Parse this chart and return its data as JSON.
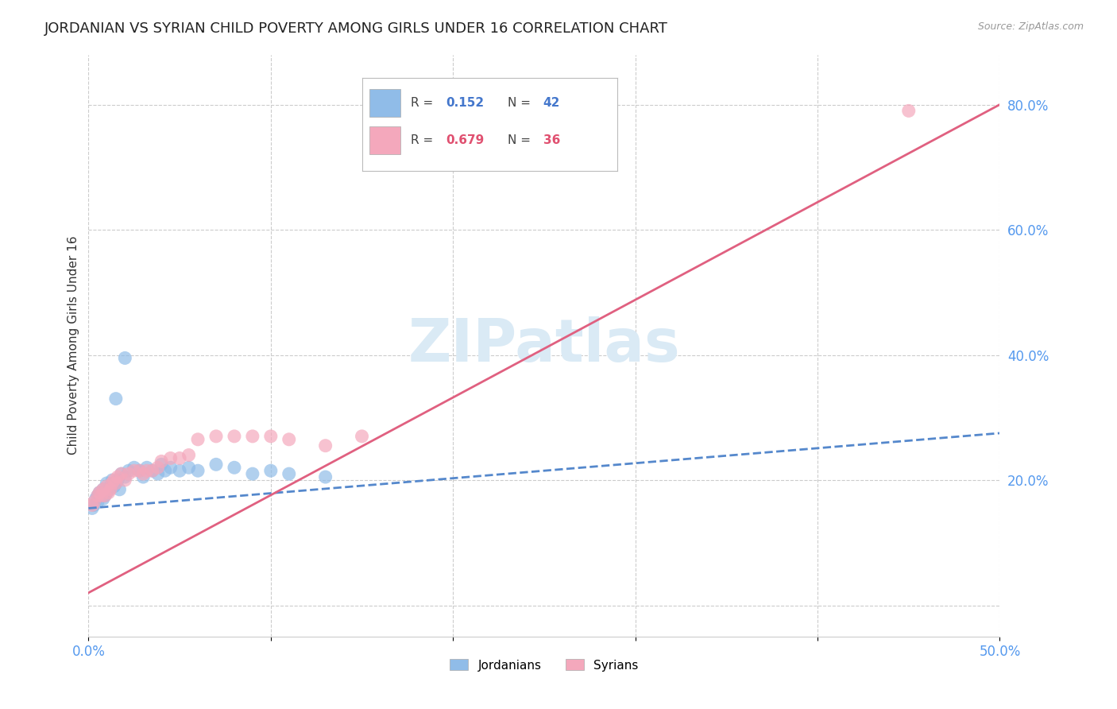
{
  "title": "JORDANIAN VS SYRIAN CHILD POVERTY AMONG GIRLS UNDER 16 CORRELATION CHART",
  "source": "Source: ZipAtlas.com",
  "ylabel": "Child Poverty Among Girls Under 16",
  "xlim": [
    0.0,
    0.5
  ],
  "ylim": [
    -0.05,
    0.88
  ],
  "yticks": [
    0.0,
    0.2,
    0.4,
    0.6,
    0.8
  ],
  "ytick_labels": [
    "",
    "20.0%",
    "40.0%",
    "60.0%",
    "80.0%"
  ],
  "xtick_positions": [
    0.0,
    0.1,
    0.2,
    0.3,
    0.4,
    0.5
  ],
  "xtick_labels": [
    "0.0%",
    "",
    "",
    "",
    "",
    "50.0%"
  ],
  "legend_r1": "0.152",
  "legend_n1": "42",
  "legend_r2": "0.679",
  "legend_n2": "36",
  "jordanian_color": "#90bce8",
  "syrian_color": "#f4a8bc",
  "jordanian_line_color": "#5588cc",
  "syrian_line_color": "#e06080",
  "background_color": "#ffffff",
  "watermark": "ZIPatlas",
  "watermark_color": "#daeaf5",
  "grid_color": "#cccccc",
  "title_fontsize": 13,
  "axis_label_fontsize": 11,
  "tick_fontsize": 12,
  "legend_fontsize": 12,
  "jordanians_x": [
    0.002,
    0.003,
    0.004,
    0.005,
    0.005,
    0.006,
    0.007,
    0.008,
    0.008,
    0.009,
    0.01,
    0.01,
    0.011,
    0.012,
    0.013,
    0.014,
    0.015,
    0.016,
    0.017,
    0.018,
    0.02,
    0.022,
    0.025,
    0.028,
    0.03,
    0.032,
    0.035,
    0.038,
    0.04,
    0.042,
    0.045,
    0.05,
    0.055,
    0.06,
    0.07,
    0.08,
    0.09,
    0.1,
    0.11,
    0.13,
    0.015,
    0.02
  ],
  "jordanians_y": [
    0.155,
    0.16,
    0.17,
    0.165,
    0.175,
    0.18,
    0.175,
    0.17,
    0.185,
    0.175,
    0.18,
    0.195,
    0.185,
    0.19,
    0.2,
    0.19,
    0.195,
    0.2,
    0.185,
    0.21,
    0.205,
    0.215,
    0.22,
    0.215,
    0.205,
    0.22,
    0.215,
    0.21,
    0.225,
    0.215,
    0.22,
    0.215,
    0.22,
    0.215,
    0.225,
    0.22,
    0.21,
    0.215,
    0.21,
    0.205,
    0.33,
    0.395
  ],
  "syrians_x": [
    0.002,
    0.003,
    0.005,
    0.006,
    0.007,
    0.008,
    0.009,
    0.01,
    0.011,
    0.012,
    0.013,
    0.014,
    0.015,
    0.016,
    0.018,
    0.02,
    0.022,
    0.025,
    0.028,
    0.03,
    0.032,
    0.035,
    0.038,
    0.04,
    0.045,
    0.05,
    0.055,
    0.06,
    0.07,
    0.08,
    0.09,
    0.1,
    0.11,
    0.13,
    0.15,
    0.45
  ],
  "syrians_y": [
    0.16,
    0.165,
    0.175,
    0.18,
    0.175,
    0.185,
    0.175,
    0.19,
    0.18,
    0.185,
    0.195,
    0.2,
    0.195,
    0.205,
    0.21,
    0.2,
    0.21,
    0.215,
    0.215,
    0.21,
    0.215,
    0.215,
    0.22,
    0.23,
    0.235,
    0.235,
    0.24,
    0.265,
    0.27,
    0.27,
    0.27,
    0.27,
    0.265,
    0.255,
    0.27,
    0.79
  ],
  "jordan_line_x0": 0.0,
  "jordan_line_y0": 0.155,
  "jordan_line_x1": 0.5,
  "jordan_line_y1": 0.275,
  "syrian_line_x0": 0.0,
  "syrian_line_y0": 0.02,
  "syrian_line_x1": 0.5,
  "syrian_line_y1": 0.8
}
